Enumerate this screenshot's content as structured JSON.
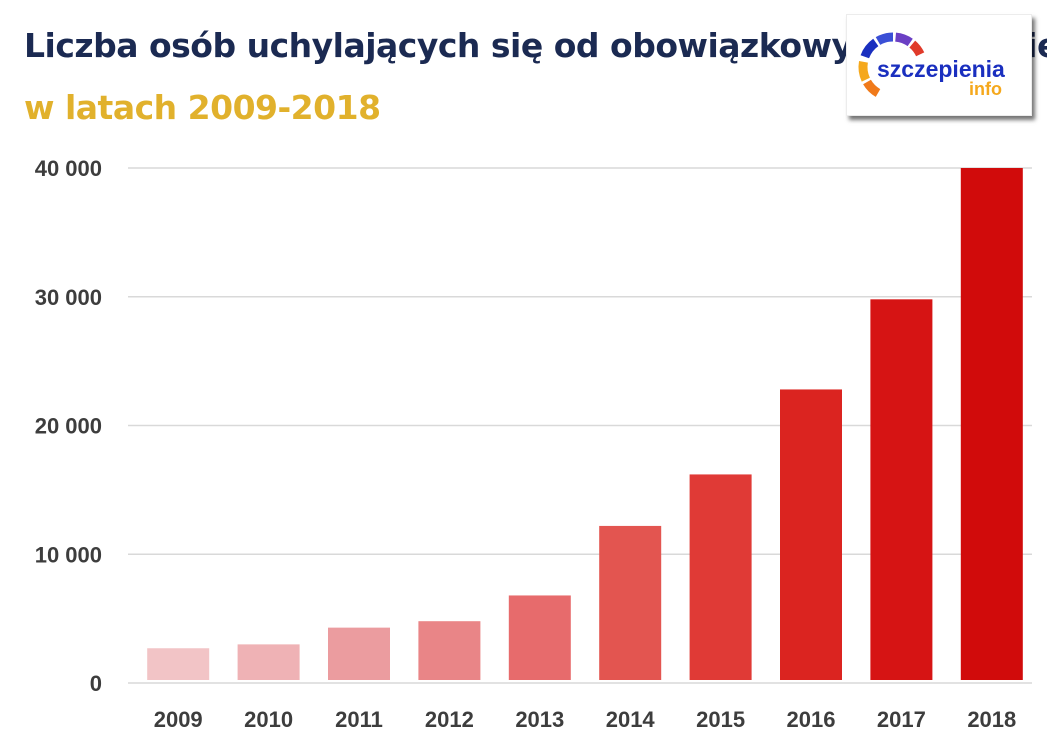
{
  "header": {
    "title": "Liczba osób uchylających się od obowiązkowych szczepień",
    "subtitle": "w latach 2009-2018",
    "title_color": "#1b2a52",
    "subtitle_color": "#e1b12c"
  },
  "logo": {
    "text_main": "szczepienia",
    "text_sub": "info",
    "colors": [
      "#1a2fbf",
      "#3a4fd6",
      "#6b3fc4",
      "#e03a2a",
      "#f07a1a",
      "#f5a81c"
    ]
  },
  "chart_data": {
    "type": "bar",
    "categories": [
      "2009",
      "2010",
      "2011",
      "2012",
      "2013",
      "2014",
      "2015",
      "2016",
      "2017",
      "2018"
    ],
    "values": [
      2700,
      3000,
      4300,
      4800,
      6800,
      12200,
      16200,
      22800,
      29800,
      40000
    ],
    "colors": [
      "#f2c4c6",
      "#efb2b5",
      "#eb9c9f",
      "#e98587",
      "#e76b6c",
      "#e35550",
      "#e03a36",
      "#db2420",
      "#d61414",
      "#d10b0b"
    ],
    "title": "Liczba osób uchylających się od obowiązkowych szczepień",
    "subtitle": "w latach 2009-2018",
    "xlabel": "",
    "ylabel": "",
    "ylim": [
      0,
      40000
    ],
    "yticks": [
      0,
      10000,
      20000,
      30000,
      40000
    ],
    "ytick_labels": [
      "0",
      "10 000",
      "20 000",
      "30 000",
      "40 000"
    ],
    "grid": true,
    "legend": "none"
  }
}
